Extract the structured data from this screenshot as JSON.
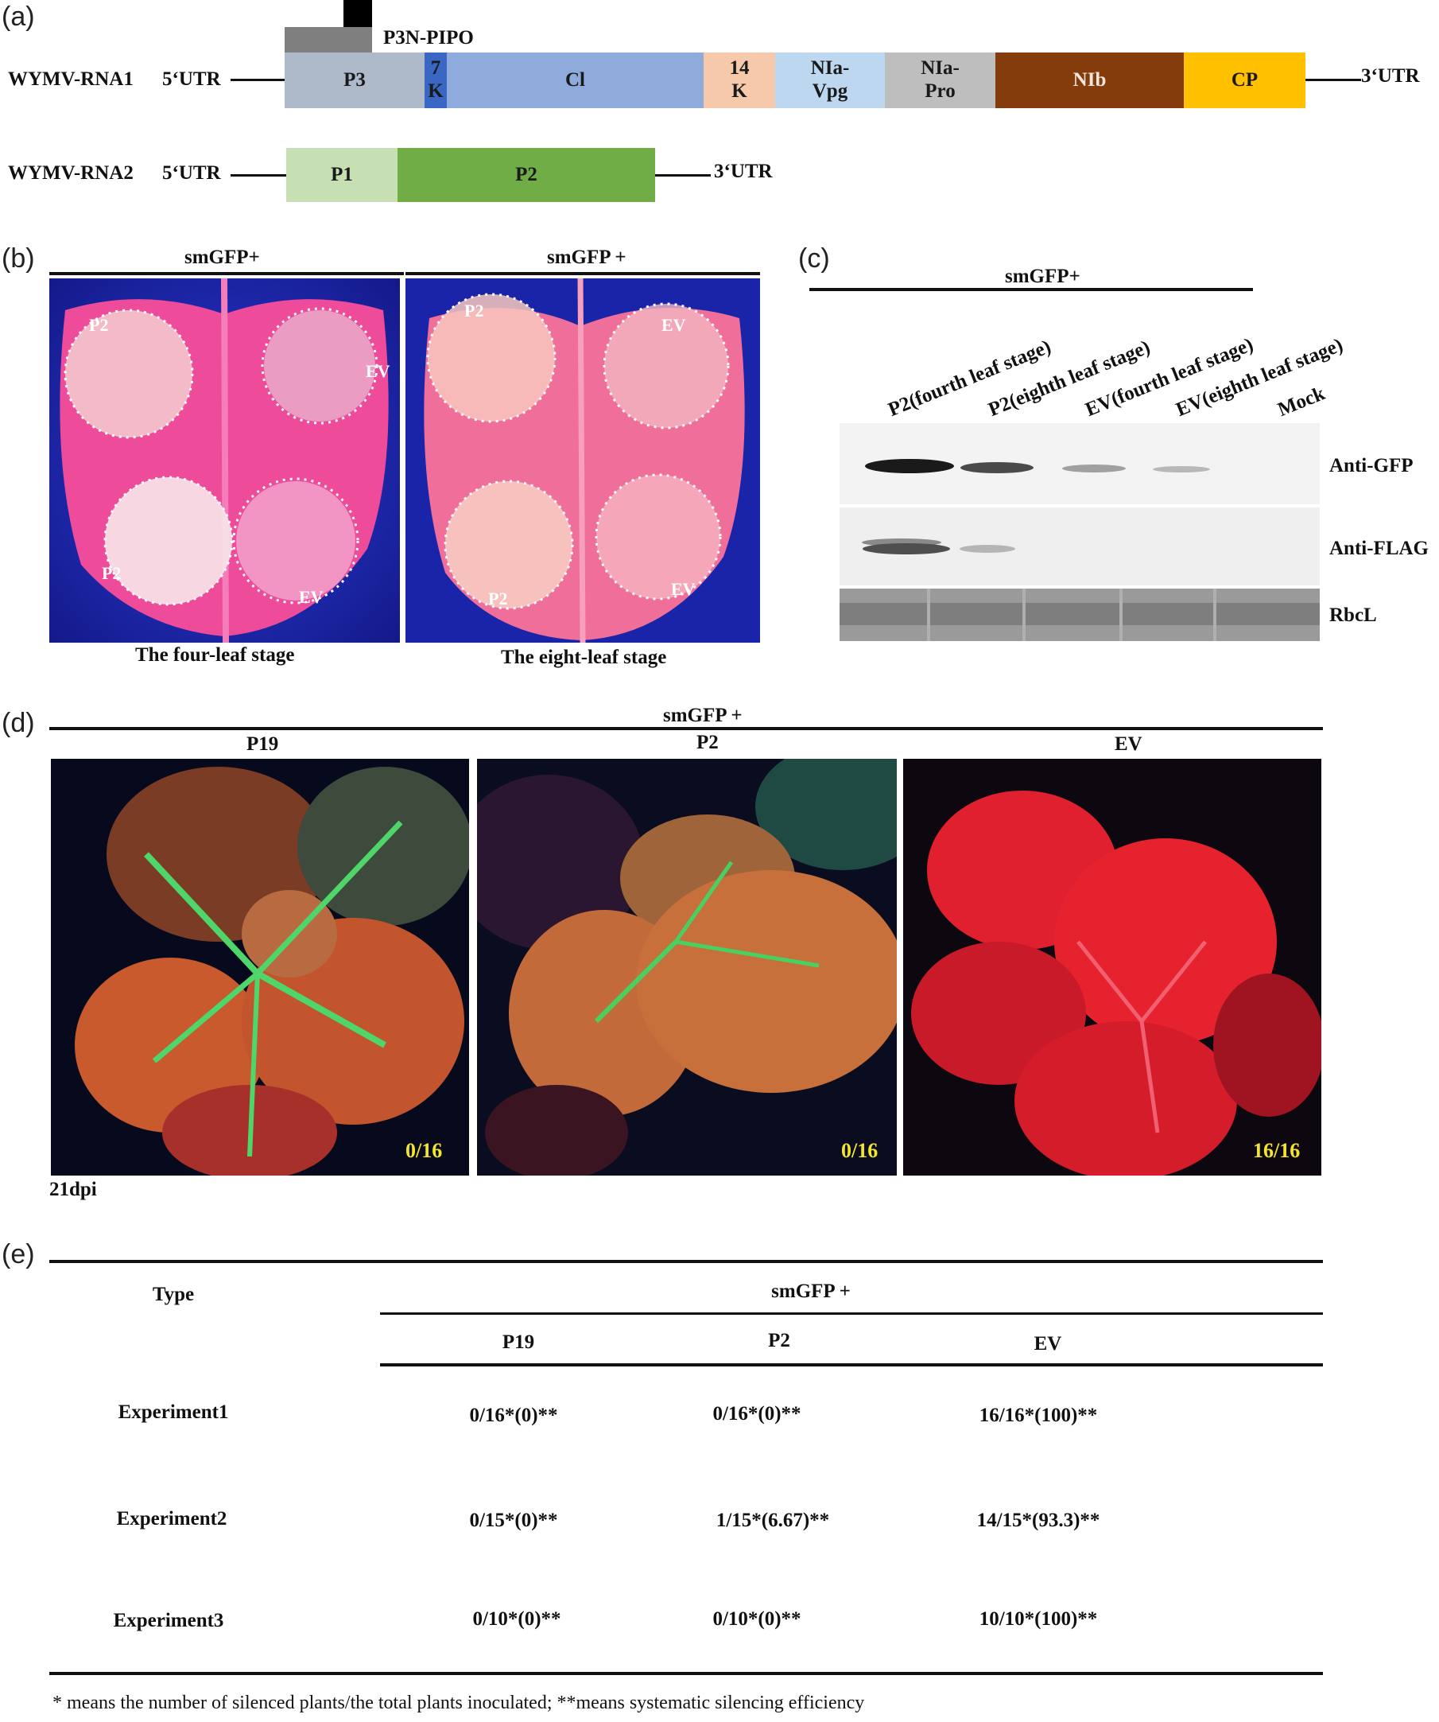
{
  "panel_a": {
    "label": "(a)",
    "rna1": {
      "name": "WYMV-RNA1",
      "utr5": "5‘UTR",
      "utr3": "3‘UTR",
      "pipo_label": "P3N-PIPO",
      "segments": [
        {
          "label": "P3",
          "color": "#aebac9"
        },
        {
          "label": "7\nK",
          "color": "#3a66c4"
        },
        {
          "label": "Cl",
          "color": "#8eabdb"
        },
        {
          "label": "14\nK",
          "color": "#f5c9a9"
        },
        {
          "label": "NIa-\nVpg",
          "color": "#bcd7ef"
        },
        {
          "label": "NIa-\nPro",
          "color": "#bebebe"
        },
        {
          "label": "NIb",
          "color": "#843c0c"
        },
        {
          "label": "CP",
          "color": "#ffc000"
        }
      ]
    },
    "rna2": {
      "name": "WYMV-RNA2",
      "utr5": "5‘UTR",
      "utr3": "3‘UTR",
      "segments": [
        {
          "label": "P1",
          "color": "#c6e0b4"
        },
        {
          "label": "P2",
          "color": "#70ad47"
        }
      ]
    }
  },
  "panel_b": {
    "label": "(b)",
    "left": {
      "header": "smGFP+",
      "caption": "The four-leaf stage",
      "labels": [
        "P2",
        "EV",
        "P2",
        "EV"
      ]
    },
    "right": {
      "header": "smGFP +",
      "caption": "The eight-leaf stage",
      "labels": [
        "P2",
        "EV",
        "P2",
        "EV"
      ]
    }
  },
  "panel_c": {
    "label": "(c)",
    "header": "smGFP+",
    "lanes": [
      "P2(fourth leaf stage)",
      "P2(eighth leaf stage)",
      "EV(fourth leaf stage)",
      "EV(eighth leaf stage)",
      "Mock"
    ],
    "blots": [
      "Anti-GFP",
      "Anti-FLAG",
      "RbcL"
    ]
  },
  "panel_d": {
    "label": "(d)",
    "header": "smGFP +",
    "photos": [
      {
        "title": "P19",
        "ratio": "0/16"
      },
      {
        "title": "P2",
        "ratio": "0/16"
      },
      {
        "title": "EV",
        "ratio": "16/16"
      }
    ],
    "time": "21dpi"
  },
  "panel_e": {
    "label": "(e)",
    "type_header": "Type",
    "group_header": "smGFP +",
    "columns": [
      "P19",
      "P2",
      "EV"
    ],
    "rows": [
      {
        "name": "Experiment1",
        "values": [
          "0/16*(0)**",
          "0/16*(0)**",
          "16/16*(100)**"
        ]
      },
      {
        "name": "Experiment2",
        "values": [
          "0/15*(0)**",
          "1/15*(6.67)**",
          "14/15*(93.3)**"
        ]
      },
      {
        "name": "Experiment3",
        "values": [
          "0/10*(0)**",
          "0/10*(0)**",
          "10/10*(100)**"
        ]
      }
    ],
    "footnote": "* means the number of silenced plants/the total plants inoculated; **means systematic silencing efficiency"
  }
}
